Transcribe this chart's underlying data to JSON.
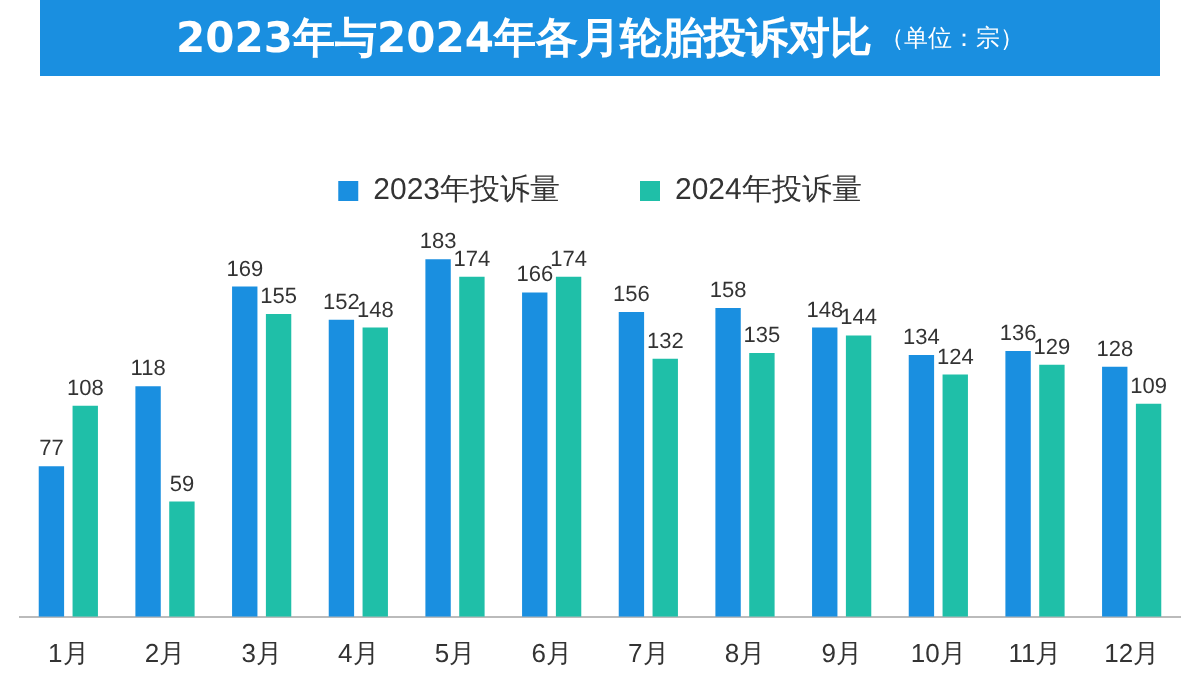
{
  "chart_data": {
    "type": "bar",
    "title": "2023年与2024年各月轮胎投诉对比",
    "subtitle": "（单位：宗）",
    "categories": [
      "1月",
      "2月",
      "3月",
      "4月",
      "5月",
      "6月",
      "7月",
      "8月",
      "9月",
      "10月",
      "11月",
      "12月"
    ],
    "series": [
      {
        "name": "2023年投诉量",
        "color": "#1a8fe0",
        "values": [
          77,
          118,
          169,
          152,
          183,
          166,
          156,
          158,
          148,
          134,
          136,
          128
        ]
      },
      {
        "name": "2024年投诉量",
        "color": "#1fbfa8",
        "values": [
          108,
          59,
          155,
          148,
          174,
          174,
          132,
          135,
          144,
          124,
          129,
          109
        ]
      }
    ],
    "data_labels": true,
    "legend": "top",
    "grid": false,
    "tick_labels": "x"
  }
}
